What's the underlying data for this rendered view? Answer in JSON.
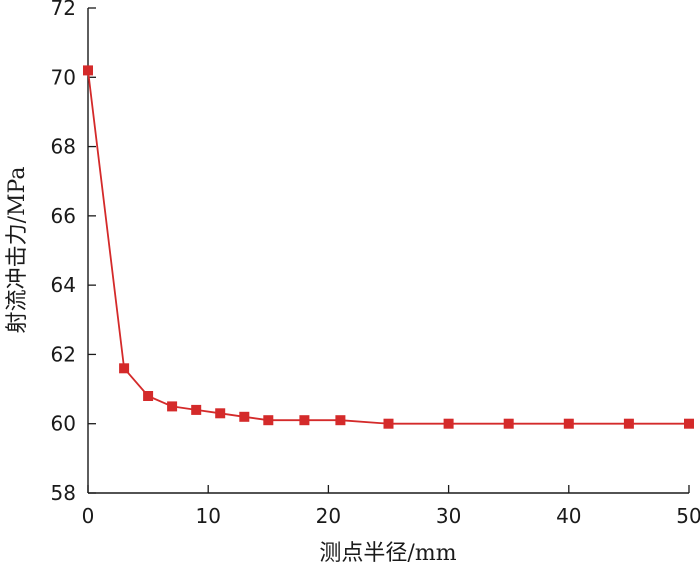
{
  "chart_data": {
    "type": "line",
    "xlabel": "测点半径/mm",
    "ylabel": "射流冲击力/MPa",
    "xlim": [
      0,
      50
    ],
    "ylim": [
      58,
      72
    ],
    "xticks": [
      0,
      10,
      20,
      30,
      40,
      50
    ],
    "yticks": [
      58,
      60,
      62,
      64,
      66,
      68,
      70,
      72
    ],
    "grid": false,
    "series": [
      {
        "color": "#d42a2a",
        "marker": "square",
        "x": [
          0,
          3,
          5,
          7,
          9,
          11,
          13,
          15,
          18,
          21,
          25,
          30,
          35,
          40,
          45,
          50
        ],
        "y": [
          70.2,
          61.6,
          60.8,
          60.5,
          60.4,
          60.3,
          60.2,
          60.1,
          60.1,
          60.1,
          60.0,
          60.0,
          60.0,
          60.0,
          60.0,
          60.0
        ]
      }
    ]
  }
}
